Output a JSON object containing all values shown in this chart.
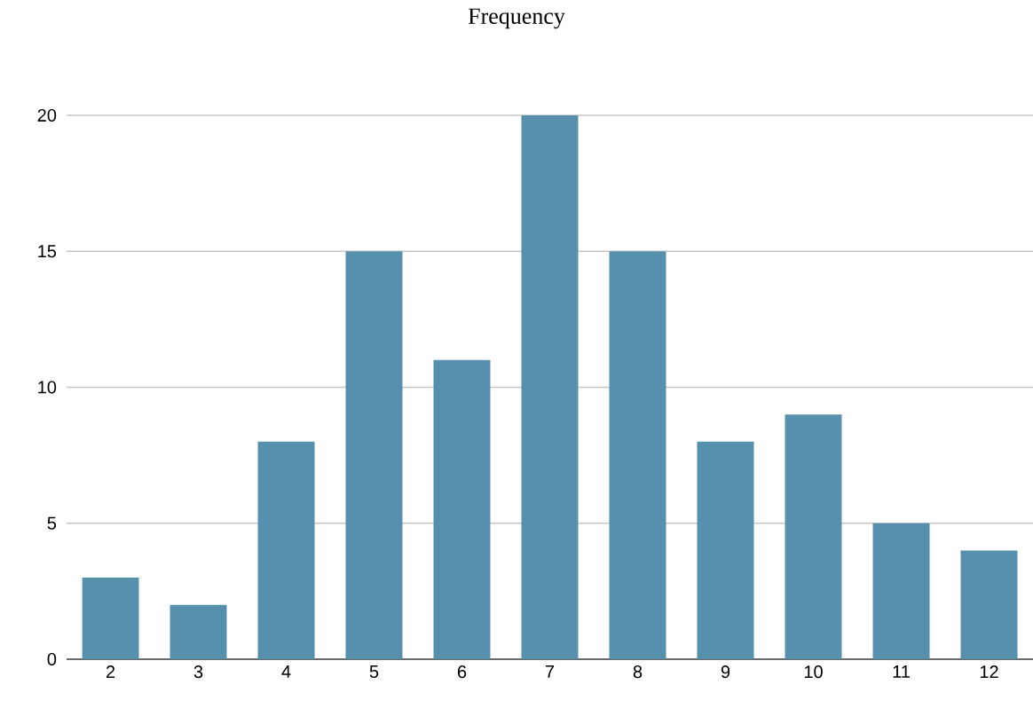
{
  "chart_data": {
    "type": "bar",
    "title": "Frequency",
    "categories": [
      "2",
      "3",
      "4",
      "5",
      "6",
      "7",
      "8",
      "9",
      "10",
      "11",
      "12"
    ],
    "values": [
      3,
      2,
      8,
      15,
      11,
      20,
      15,
      8,
      9,
      5,
      4
    ],
    "color": "#5790ac",
    "ylim": [
      0,
      20
    ],
    "yticks": [
      0,
      5,
      10,
      15,
      20
    ],
    "grid": "y"
  }
}
